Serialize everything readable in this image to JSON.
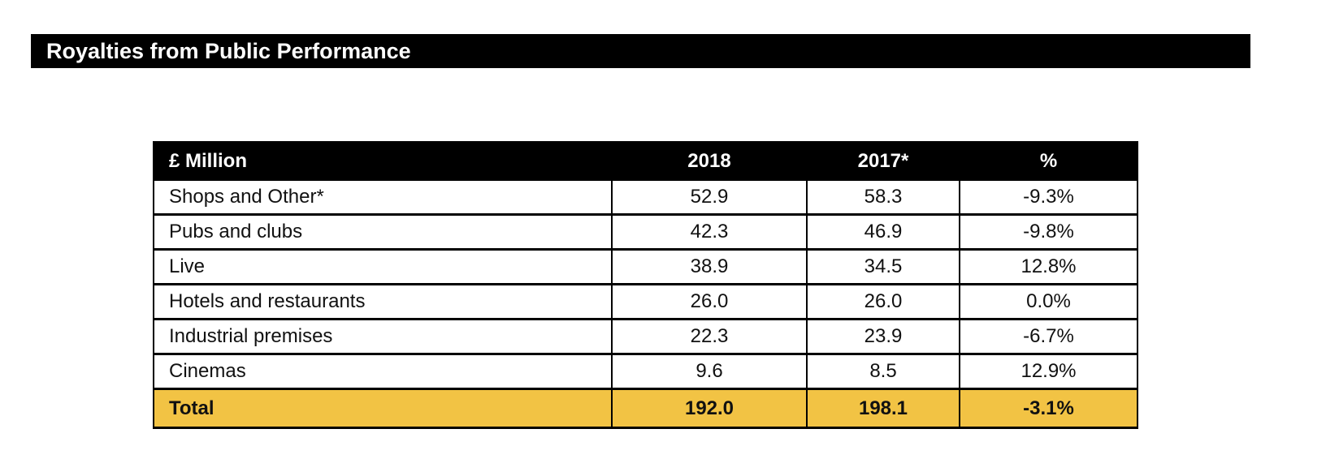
{
  "colors": {
    "page_bg": "#ffffff",
    "banner_bg": "#000000",
    "banner_fg": "#ffffff",
    "header_bg": "#000000",
    "header_fg": "#ffffff",
    "total_bg": "#F2C344",
    "border": "#000000",
    "text": "#111111"
  },
  "banner": {
    "title": "Royalties from Public Performance"
  },
  "table": {
    "columns": [
      "£ Million",
      "2018",
      "2017*",
      "%"
    ],
    "rows": [
      {
        "label": "Shops and Other*",
        "y2018": "52.9",
        "y2017": "58.3",
        "pct": "-9.3%"
      },
      {
        "label": "Pubs and clubs",
        "y2018": "42.3",
        "y2017": "46.9",
        "pct": "-9.8%"
      },
      {
        "label": "Live",
        "y2018": "38.9",
        "y2017": "34.5",
        "pct": "12.8%"
      },
      {
        "label": "Hotels and restaurants",
        "y2018": "26.0",
        "y2017": "26.0",
        "pct": "0.0%"
      },
      {
        "label": "Industrial premises",
        "y2018": "22.3",
        "y2017": "23.9",
        "pct": "-6.7%"
      },
      {
        "label": "Cinemas",
        "y2018": "9.6",
        "y2017": "8.5",
        "pct": "12.9%"
      }
    ],
    "total": {
      "label": "Total",
      "y2018": "192.0",
      "y2017": "198.1",
      "pct": "-3.1%"
    }
  },
  "chart_data": {
    "type": "table",
    "title": "Royalties from Public Performance",
    "columns": [
      "£ Million",
      "2018",
      "2017*",
      "%"
    ],
    "rows": [
      [
        "Shops and Other*",
        52.9,
        58.3,
        "-9.3%"
      ],
      [
        "Pubs and clubs",
        42.3,
        46.9,
        "-9.8%"
      ],
      [
        "Live",
        38.9,
        34.5,
        "12.8%"
      ],
      [
        "Hotels and restaurants",
        26.0,
        26.0,
        "0.0%"
      ],
      [
        "Industrial premises",
        22.3,
        23.9,
        "-6.7%"
      ],
      [
        "Cinemas",
        9.6,
        8.5,
        "12.9%"
      ]
    ],
    "total_row": [
      "Total",
      192.0,
      198.1,
      "-3.1%"
    ]
  }
}
